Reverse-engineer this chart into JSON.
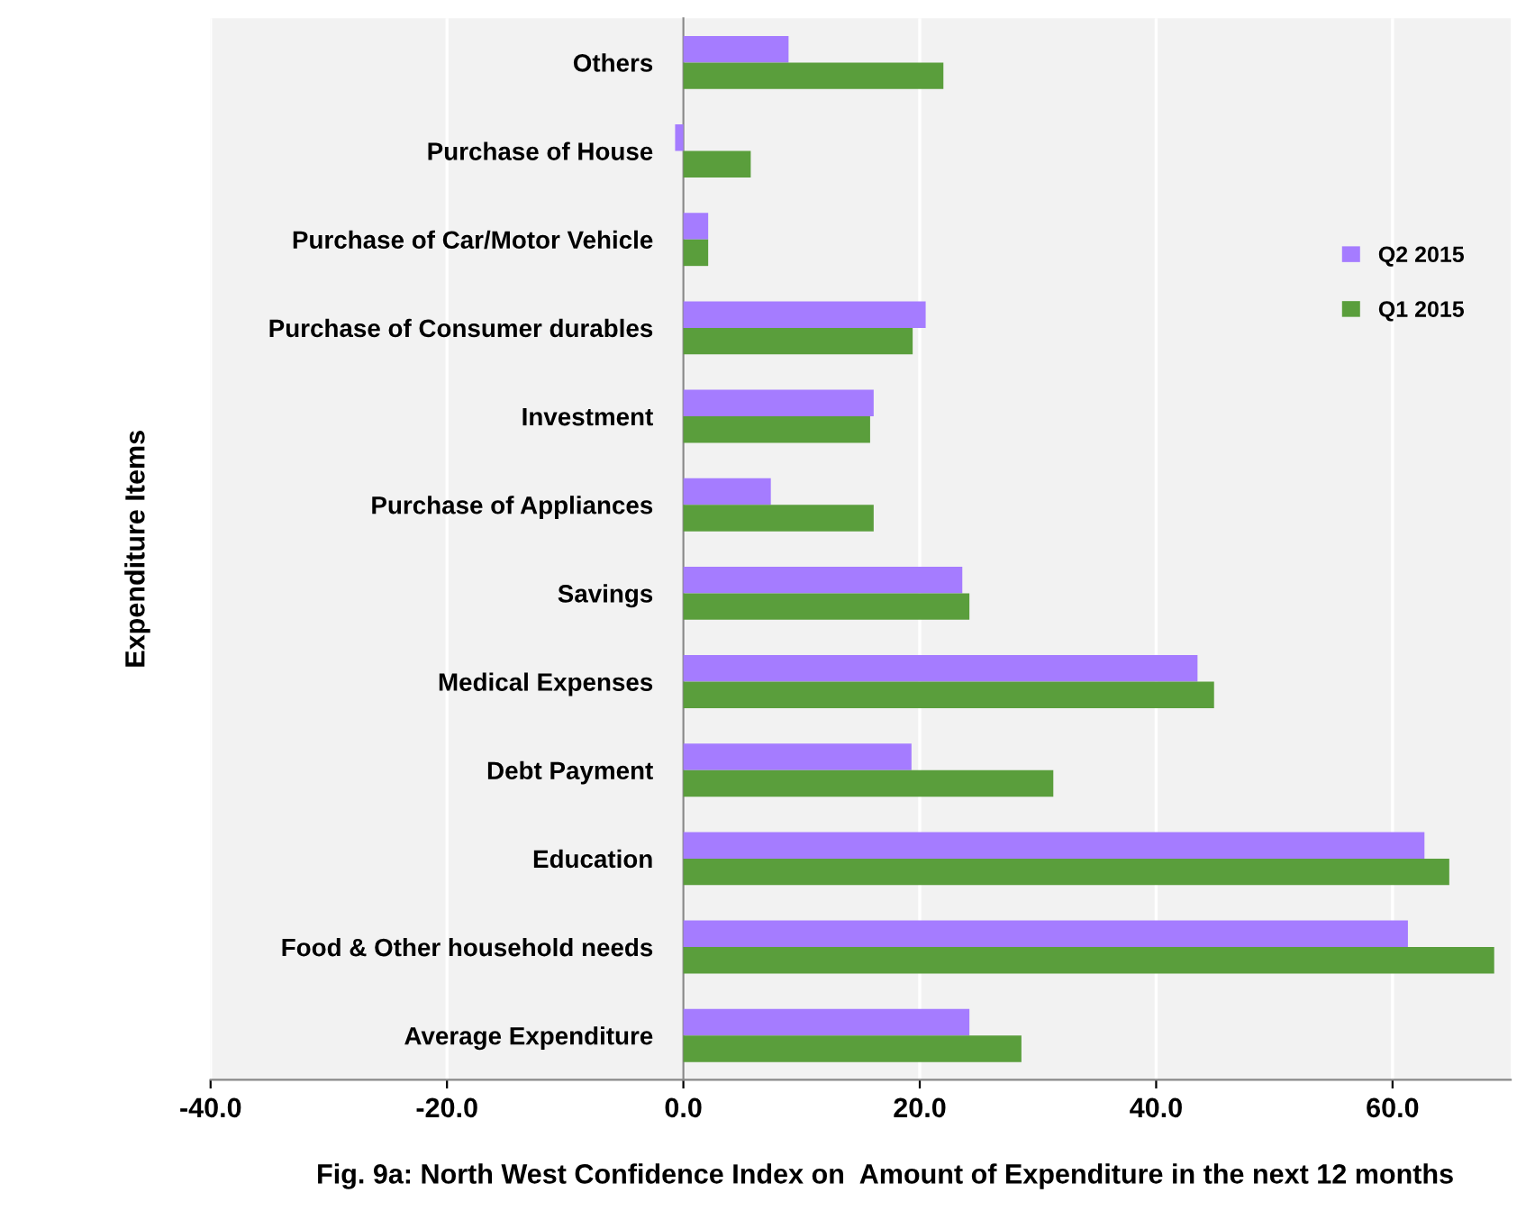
{
  "chart_data": {
    "type": "bar",
    "orientation": "horizontal",
    "title": "Fig. 9a: North West Confidence Index on  Amount of Expenditure in the next 12 months",
    "ylabel": "Expenditure Items",
    "categories": [
      "Others",
      "Purchase of House",
      "Purchase of Car/Motor Vehicle",
      "Purchase of Consumer durables",
      "Investment",
      "Purchase of Appliances",
      "Savings",
      "Medical Expenses",
      "Debt Payment",
      "Education",
      "Food & Other household needs",
      "Average Expenditure"
    ],
    "series": [
      {
        "name": "Q2 2015",
        "color": "#a57cff",
        "values": [
          8.9,
          -0.7,
          2.1,
          20.5,
          16.1,
          7.4,
          23.6,
          43.5,
          19.3,
          62.7,
          61.3,
          24.2
        ]
      },
      {
        "name": "Q1 2015",
        "color": "#5a9e3c",
        "values": [
          22.0,
          5.7,
          2.1,
          19.4,
          15.8,
          16.1,
          24.2,
          44.9,
          31.3,
          64.8,
          68.6,
          28.6
        ]
      }
    ],
    "xlim": [
      -40,
      70
    ],
    "xticks": [
      {
        "value": -40,
        "label": "-40.0"
      },
      {
        "value": -20,
        "label": "-20.0"
      },
      {
        "value": 0,
        "label": "0.0"
      },
      {
        "value": 20,
        "label": "20.0"
      },
      {
        "value": 40,
        "label": "40.0"
      },
      {
        "value": 60,
        "label": "60.0"
      }
    ],
    "grid": "x",
    "legend": "right"
  }
}
